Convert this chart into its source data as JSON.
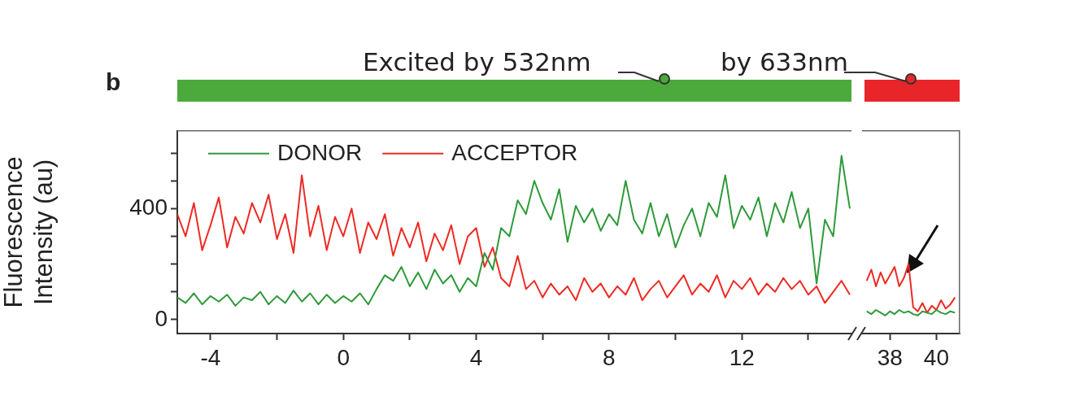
{
  "chart_data": [
    {
      "type": "line",
      "ylabel": "Fluorescence Intensity (au)",
      "annotations": [
        "b",
        "Excited by 532nm"
      ],
      "legend": "top left",
      "grid": false,
      "marker": "none",
      "line_style": "solid",
      "xlim": [
        -5,
        15.3
      ],
      "xticks": [
        -4,
        {
          "value": -2,
          "label": null
        },
        0,
        {
          "value": 2,
          "label": null
        },
        4,
        {
          "value": 6,
          "label": null
        },
        8,
        {
          "value": 10,
          "label": null
        },
        12,
        {
          "value": 14,
          "label": null
        }
      ],
      "ylim": [
        -50,
        680
      ],
      "yticks": [
        0,
        {
          "value": 100,
          "label": null
        },
        {
          "value": 200,
          "label": null
        },
        {
          "value": 300,
          "label": null
        },
        400,
        {
          "value": 500,
          "label": null
        },
        {
          "value": 600,
          "label": null
        }
      ],
      "x": [
        -5,
        -4.75,
        -4.5,
        -4.25,
        -4,
        -3.75,
        -3.5,
        -3.25,
        -3,
        -2.75,
        -2.5,
        -2.25,
        -2,
        -1.75,
        -1.5,
        -1.25,
        -1,
        -0.75,
        -0.5,
        -0.25,
        0,
        0.25,
        0.5,
        0.75,
        1,
        1.25,
        1.5,
        1.75,
        2,
        2.25,
        2.5,
        2.75,
        3,
        3.25,
        3.5,
        3.75,
        4,
        4.25,
        4.5,
        4.75,
        5,
        5.25,
        5.5,
        5.75,
        6,
        6.25,
        6.5,
        6.75,
        7,
        7.25,
        7.5,
        7.75,
        8,
        8.25,
        8.5,
        8.75,
        9,
        9.25,
        9.5,
        9.75,
        10,
        10.25,
        10.5,
        10.75,
        11,
        11.25,
        11.5,
        11.75,
        12,
        12.25,
        12.5,
        12.75,
        13,
        13.25,
        13.5,
        13.75,
        14,
        14.25,
        14.5,
        14.75,
        15,
        15.25
      ],
      "series": [
        {
          "name": "DONOR",
          "color": "#2e9a3a",
          "values": [
            80,
            60,
            95,
            55,
            85,
            65,
            90,
            50,
            80,
            70,
            100,
            55,
            85,
            60,
            105,
            65,
            95,
            55,
            90,
            60,
            85,
            65,
            95,
            55,
            110,
            160,
            140,
            190,
            120,
            170,
            110,
            180,
            130,
            160,
            100,
            150,
            120,
            240,
            180,
            330,
            300,
            430,
            380,
            500,
            420,
            360,
            470,
            280,
            410,
            350,
            400,
            320,
            380,
            340,
            500,
            360,
            310,
            420,
            300,
            380,
            260,
            340,
            400,
            300,
            420,
            370,
            520,
            330,
            410,
            360,
            440,
            300,
            420,
            350,
            460,
            330,
            400,
            130,
            360,
            300,
            590,
            400
          ]
        },
        {
          "name": "ACCEPTOR",
          "color": "#ee2a24",
          "values": [
            380,
            300,
            420,
            250,
            340,
            440,
            260,
            370,
            310,
            420,
            350,
            450,
            290,
            380,
            240,
            520,
            300,
            410,
            250,
            370,
            300,
            400,
            240,
            350,
            290,
            380,
            230,
            330,
            260,
            350,
            210,
            310,
            250,
            340,
            200,
            300,
            330,
            190,
            260,
            150,
            120,
            230,
            110,
            140,
            80,
            130,
            90,
            120,
            70,
            150,
            100,
            130,
            80,
            120,
            90,
            150,
            70,
            110,
            140,
            80,
            120,
            160,
            90,
            130,
            100,
            160,
            80,
            140,
            110,
            150,
            90,
            130,
            100,
            150,
            110,
            140,
            90,
            120,
            60,
            100,
            140,
            90
          ]
        }
      ]
    },
    {
      "type": "line",
      "annotations": [
        "by 633nm"
      ],
      "grid": false,
      "marker": "none",
      "line_style": "solid",
      "tick_labels": "x",
      "xlim": [
        36.8,
        41
      ],
      "xticks": [
        38,
        40
      ],
      "ylim": [
        -50,
        680
      ],
      "x": [
        37,
        37.2,
        37.4,
        37.6,
        37.8,
        38,
        38.2,
        38.4,
        38.6,
        38.8,
        39,
        39.2,
        39.4,
        39.6,
        39.8,
        40,
        40.2,
        40.4,
        40.6,
        40.8
      ],
      "series": [
        {
          "color": "#2e9a3a",
          "values": [
            30,
            20,
            35,
            25,
            15,
            30,
            20,
            35,
            25,
            30,
            20,
            15,
            30,
            25,
            20,
            35,
            25,
            20,
            30,
            25
          ]
        },
        {
          "color": "#ee2a24",
          "values": [
            140,
            180,
            120,
            170,
            130,
            160,
            190,
            120,
            150,
            200,
            45,
            30,
            60,
            25,
            50,
            35,
            70,
            40,
            55,
            80
          ]
        }
      ]
    }
  ]
}
